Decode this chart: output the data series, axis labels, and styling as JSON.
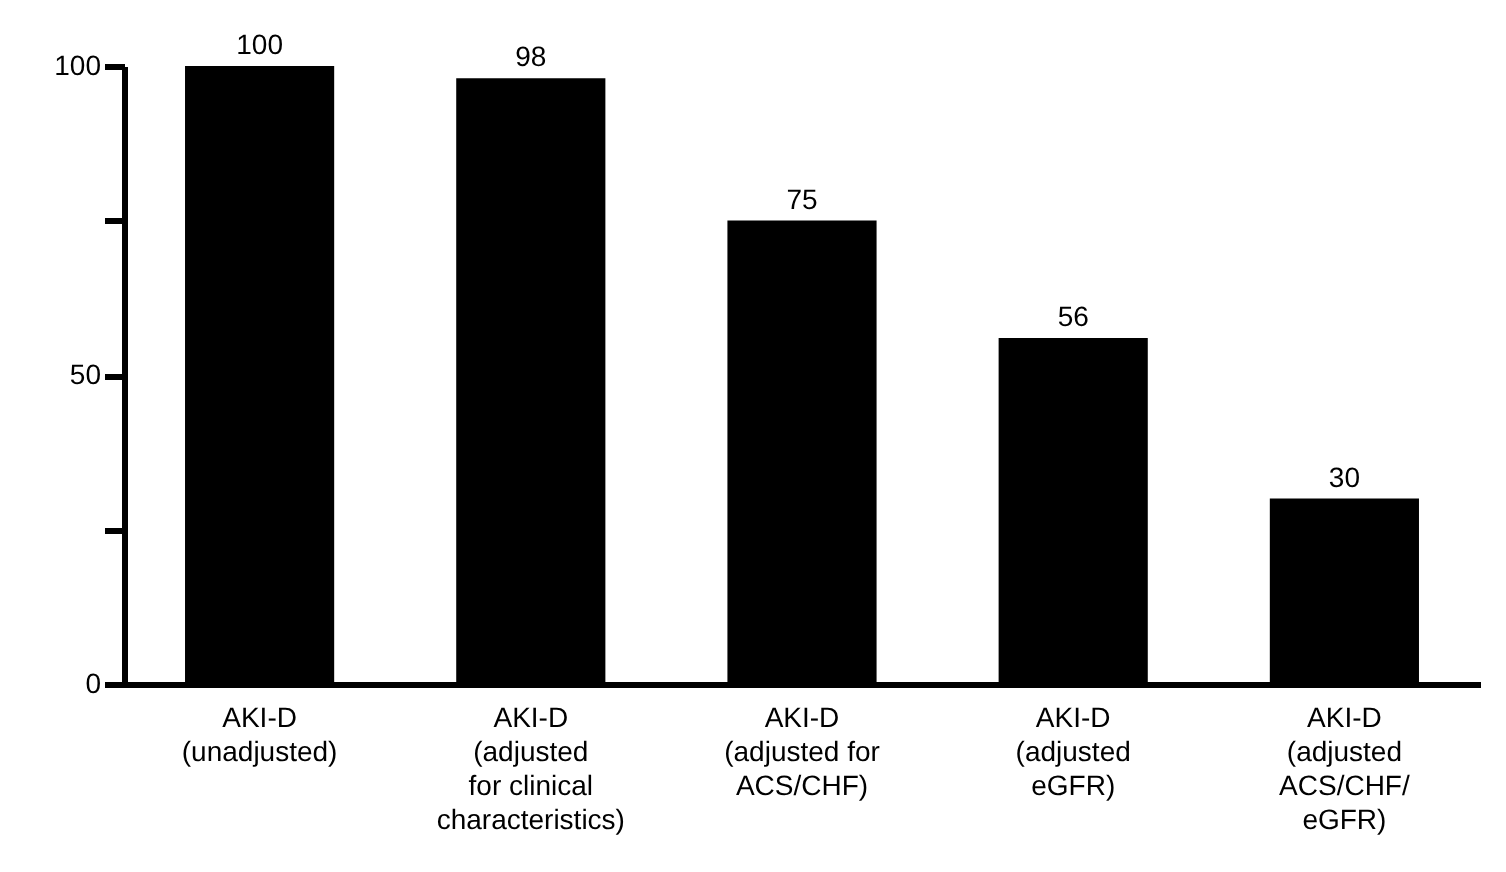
{
  "chart_data": {
    "type": "bar",
    "categories": [
      "AKI-D\n(unadjusted)",
      "AKI-D\n(adjusted\nfor clinical\ncharacteristics)",
      "AKI-D\n(adjusted for\nACS/CHF)",
      "AKI-D\n(adjusted\neGFR)",
      "AKI-D\n(adjusted\nACS/CHF/\neGFR)"
    ],
    "values": [
      100,
      98,
      75,
      56,
      30
    ],
    "color": "#000000",
    "ylim": [
      0,
      100
    ],
    "yticks": [
      0,
      {
        "value": 25,
        "label": null
      },
      50,
      {
        "value": 75,
        "label": null
      },
      100
    ],
    "data_labels": true,
    "grid": false
  }
}
